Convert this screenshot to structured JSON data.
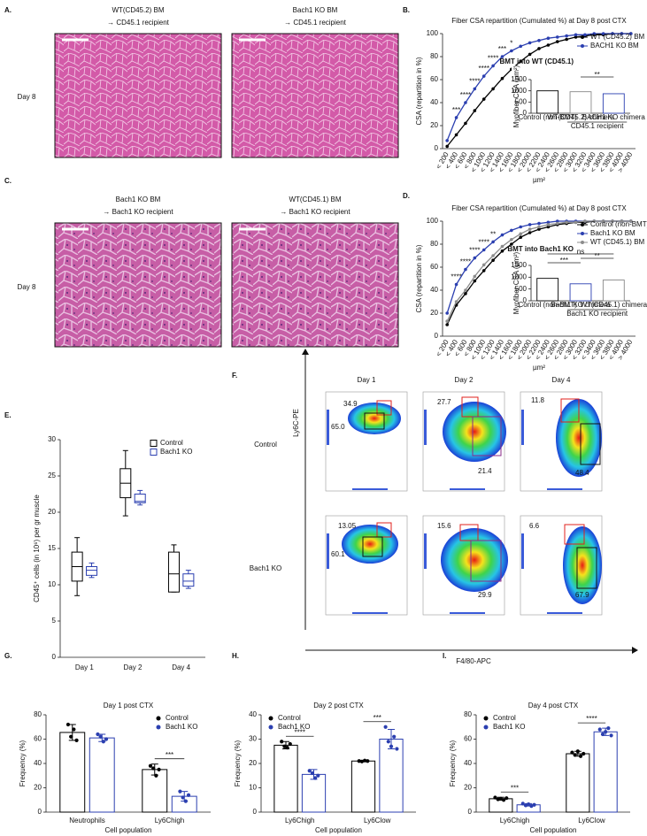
{
  "figure": {
    "panel_labels": [
      "A.",
      "B.",
      "C.",
      "D.",
      "E.",
      "F.",
      "G.",
      "H.",
      "I."
    ],
    "micrographs": [
      {
        "caption": [
          "WT(CD45.2) BM",
          "→ CD45.1 recipient"
        ]
      },
      {
        "caption": [
          "Bach1 KO BM",
          "→ CD45.1 recipient"
        ]
      },
      {
        "caption": [
          "Bach1 KO BM",
          "→ Bach1 KO recipient"
        ]
      },
      {
        "caption": [
          "WT(CD45.1) BM",
          "→ Bach1 KO recipient"
        ]
      }
    ],
    "row_labels": [
      "Day 8",
      "Day 8"
    ],
    "flow": {
      "columns": [
        "Day 1",
        "Day 2",
        "Day 4"
      ],
      "y_label": "Ly6C-PE",
      "x_label": "F4/80-APC",
      "rows": [
        {
          "label": "Control",
          "gates": [
            [
              "34.9",
              "65.0"
            ],
            [
              "27.7",
              "21.4"
            ],
            [
              "11.8",
              "48.4"
            ]
          ]
        },
        {
          "label": "Bach1 KO",
          "gates": [
            [
              "13.05",
              "60.1"
            ],
            [
              "15.6",
              "29.9"
            ],
            [
              "6.6",
              "67.9"
            ]
          ]
        }
      ]
    }
  },
  "chart_data": [
    {
      "type": "line",
      "title": "Fiber CSA repartition (Cumulated %) at Day 8 post CTX",
      "y_label": "CSA (repartition in %)",
      "x_label": "µm²",
      "categories": [
        "< 200",
        "< 400",
        "< 600",
        "< 800",
        "< 1000",
        "< 1200",
        "< 1400",
        "< 1600",
        "< 1800",
        "< 2000",
        "< 2200",
        "< 2400",
        "< 2600",
        "< 2800",
        "< 3000",
        "< 3200",
        "< 3400",
        "< 3600",
        "< 3800",
        "< 4000",
        "> 4000"
      ],
      "ylim": [
        0,
        100
      ],
      "yticks": [
        0,
        20,
        40,
        60,
        80,
        100
      ],
      "legend": "upper right",
      "legend_title": "BMT into WT (CD45.1)",
      "series": [
        {
          "name": "WT (CD45.2) BM",
          "color": "#000000",
          "values": [
            2,
            12,
            22,
            33,
            43,
            52,
            61,
            69,
            76,
            82,
            87,
            90,
            93,
            95,
            97,
            98,
            99,
            99,
            100,
            100,
            100
          ]
        },
        {
          "name": "BACH1 KO BM",
          "color": "#2b3fb0",
          "values": [
            7,
            27,
            40,
            52,
            63,
            72,
            80,
            85,
            89,
            92,
            94,
            96,
            97,
            98,
            99,
            99,
            100,
            100,
            100,
            100,
            100
          ]
        }
      ],
      "significance": [
        null,
        "***",
        "****",
        "****",
        "****",
        "****",
        "***",
        "*",
        null,
        null,
        null,
        null,
        null,
        null,
        null,
        null,
        null,
        null,
        null,
        null,
        null
      ],
      "inset": {
        "type": "bar",
        "y_label": "Myofiber CSA (µm²)",
        "categories": [
          "Control (non-BMT)",
          "WT(CD45.2) chimera",
          "BACH1 KO chimera"
        ],
        "values": [
          1000,
          960,
          870
        ],
        "colors": [
          "#000000",
          "#888888",
          "#2b3fb0"
        ],
        "ylim": [
          0,
          1500
        ],
        "yticks": [
          0,
          500,
          1000,
          1500
        ],
        "group_label": "CD45.1 recipient",
        "group": [
          1,
          2
        ],
        "comparisons": [
          {
            "pair": [
              1,
              2
            ],
            "text": "**"
          }
        ]
      }
    },
    {
      "type": "line",
      "title": "Fiber CSA repartition (Cumulated %) at Day 8 post CTX",
      "y_label": "CSA (repartition in %)",
      "x_label": "µm²",
      "categories": [
        "< 200",
        "< 400",
        "< 600",
        "< 800",
        "< 1000",
        "< 1200",
        "< 1400",
        "< 1600",
        "< 1800",
        "< 2000",
        "< 2200",
        "< 2400",
        "< 2600",
        "< 2800",
        "< 3000",
        "< 3200",
        "< 3400",
        "< 3600",
        "< 3800",
        "< 4000",
        "> 4000"
      ],
      "ylim": [
        0,
        100
      ],
      "yticks": [
        0,
        20,
        40,
        60,
        80,
        100
      ],
      "legend": "upper right",
      "legend_title": "BMT into Bach1 KO",
      "series": [
        {
          "name": "Control (non-BMT)",
          "color": "#000000",
          "values": [
            10,
            27,
            37,
            48,
            57,
            66,
            74,
            80,
            86,
            90,
            93,
            95,
            97,
            98,
            99,
            99,
            100,
            100,
            100,
            100,
            100
          ]
        },
        {
          "name": "Bach1 KO BM",
          "color": "#2b3fb0",
          "values": [
            20,
            45,
            58,
            68,
            75,
            82,
            88,
            92,
            95,
            97,
            98,
            99,
            100,
            100,
            100,
            100,
            100,
            100,
            100,
            100,
            100
          ]
        },
        {
          "name": "WT (CD45.1) BM",
          "color": "#8c8c8c",
          "values": [
            13,
            30,
            40,
            52,
            62,
            70,
            78,
            84,
            89,
            93,
            95,
            97,
            98,
            99,
            99,
            100,
            100,
            100,
            100,
            100,
            100
          ]
        }
      ],
      "significance": [
        null,
        "****",
        "****",
        "****",
        "****",
        "**",
        null,
        null,
        null,
        null,
        null,
        null,
        null,
        null,
        null,
        null,
        null,
        null,
        null,
        null,
        null
      ],
      "inset": {
        "type": "bar",
        "y_label": "Myofiber CSA (µm²)",
        "categories": [
          "Control (non-BMT)",
          "Bach1 KO chimera",
          "WT(CD45.1) chimera"
        ],
        "values": [
          950,
          720,
          880
        ],
        "colors": [
          "#000000",
          "#2b3fb0",
          "#888888"
        ],
        "ylim": [
          0,
          1500
        ],
        "yticks": [
          0,
          500,
          1000,
          1500
        ],
        "group_label": "Bach1 KO recipient",
        "group": [
          1,
          2
        ],
        "comparisons": [
          {
            "pair": [
              0,
              1
            ],
            "text": "***"
          },
          {
            "pair": [
              1,
              2
            ],
            "text": "**"
          },
          {
            "pair": [
              0,
              2
            ],
            "text": "ns"
          }
        ]
      }
    },
    {
      "type": "box",
      "y_label": "CD45⁺ cells (in 10⁶) per gr muscle",
      "categories": [
        "Day 1",
        "Day 2",
        "Day 4"
      ],
      "ylim": [
        0,
        30
      ],
      "yticks": [
        0,
        5,
        10,
        15,
        20,
        25,
        30
      ],
      "legend": "upper right",
      "series": [
        {
          "name": "Control",
          "color": "#000000",
          "boxes": [
            [
              8.5,
              10.5,
              12.5,
              14.5,
              16.5
            ],
            [
              19.5,
              22,
              24,
              26,
              28.5
            ],
            [
              9,
              9,
              11.5,
              14.5,
              15.5
            ]
          ]
        },
        {
          "name": "Bach1 KO",
          "color": "#2b3fb0",
          "boxes": [
            [
              11,
              11.3,
              12,
              12.5,
              13
            ],
            [
              21,
              21.3,
              21.5,
              22.5,
              23
            ],
            [
              9.5,
              9.8,
              10.5,
              11.5,
              12
            ]
          ]
        }
      ]
    },
    {
      "type": "grouped_bar",
      "title": "Day 1 post CTX",
      "x_label": "Cell population",
      "y_label": "Frequency (%)",
      "categories": [
        "Neutrophils",
        "Ly6Chigh"
      ],
      "ylim": [
        0,
        80
      ],
      "yticks": [
        0,
        20,
        40,
        60,
        80
      ],
      "legend": "upper right",
      "series": [
        {
          "name": "Control",
          "color": "#000000",
          "values": [
            65.5,
            35
          ],
          "errors": [
            6.5,
            4.5
          ],
          "points": [
            [
              72,
              62,
              68,
              59
            ],
            [
              38,
              36,
              30,
              35
            ]
          ]
        },
        {
          "name": "Bach1 KO",
          "color": "#2b3fb0",
          "values": [
            61,
            13
          ],
          "errors": [
            3,
            4
          ],
          "points": [
            [
              64,
              62,
              58,
              60
            ],
            [
              17,
              12,
              9,
              14
            ]
          ]
        }
      ],
      "significance": [
        null,
        "***"
      ]
    },
    {
      "type": "grouped_bar",
      "title": "Day 2 post CTX",
      "x_label": "Cell population",
      "y_label": "Frequency (%)",
      "categories": [
        "Ly6Chigh",
        "Ly6Clow"
      ],
      "ylim": [
        0,
        40
      ],
      "yticks": [
        0,
        10,
        20,
        30,
        40
      ],
      "legend": "upper left",
      "series": [
        {
          "name": "Control",
          "color": "#000000",
          "values": [
            27.5,
            21
          ],
          "errors": [
            1.5,
            0.3
          ],
          "points": [
            [
              29,
              27,
              26.5,
              28
            ],
            [
              21,
              20.8,
              21.2,
              21
            ]
          ]
        },
        {
          "name": "Bach1 KO",
          "color": "#2b3fb0",
          "values": [
            15.5,
            30
          ],
          "errors": [
            2,
            4
          ],
          "points": [
            [
              17,
              16,
              14,
              15
            ],
            [
              35,
              29,
              27,
              31,
              26
            ]
          ]
        }
      ],
      "significance": [
        "****",
        "***"
      ]
    },
    {
      "type": "grouped_bar",
      "title": "Day 4 post CTX",
      "x_label": "Cell population",
      "y_label": "Frequency (%)",
      "categories": [
        "Ly6Chigh",
        "Ly6Clow"
      ],
      "ylim": [
        0,
        80
      ],
      "yticks": [
        0,
        20,
        40,
        60,
        80
      ],
      "legend": "upper left",
      "series": [
        {
          "name": "Control",
          "color": "#000000",
          "values": [
            11,
            48
          ],
          "errors": [
            1.2,
            2
          ],
          "points": [
            [
              12,
              10.5,
              11,
              10,
              11.5
            ],
            [
              49,
              47,
              50,
              46,
              48
            ]
          ]
        },
        {
          "name": "Bach1 KO",
          "color": "#2b3fb0",
          "values": [
            6,
            66
          ],
          "errors": [
            1,
            3
          ],
          "points": [
            [
              7,
              5.5,
              6.5,
              5,
              6
            ],
            [
              68,
              64,
              66,
              69,
              63
            ]
          ]
        }
      ],
      "significance": [
        "***",
        "****"
      ]
    }
  ]
}
